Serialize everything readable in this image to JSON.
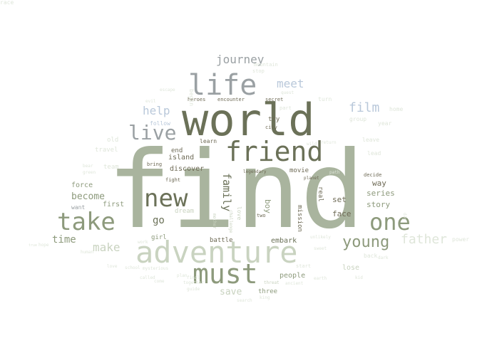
{
  "palette": {
    "dark": "#6b7158",
    "sage": "#a9b49e",
    "mid": "#8d9a7c",
    "light": "#c9d3c0",
    "pale": "#dfe6da",
    "gray": "#9aa0a3",
    "blue": "#b9c8da",
    "brown": "#6e6a55"
  },
  "words": [
    {
      "t": "find",
      "c": "sage"
    },
    {
      "t": "world",
      "c": "dark"
    },
    {
      "t": "adventure",
      "c": "light"
    },
    {
      "t": "friend",
      "c": "dark"
    },
    {
      "t": "must",
      "c": "mid"
    },
    {
      "t": "life",
      "c": "gray"
    },
    {
      "t": "new",
      "c": "dark"
    },
    {
      "t": "take",
      "c": "mid"
    },
    {
      "t": "one",
      "c": "mid"
    },
    {
      "t": "live",
      "c": "gray"
    },
    {
      "t": "young",
      "c": "mid"
    },
    {
      "t": "father",
      "c": "pale"
    },
    {
      "t": "make",
      "c": "light"
    },
    {
      "t": "journey",
      "c": "gray"
    },
    {
      "t": "meet",
      "c": "blue"
    },
    {
      "t": "film",
      "c": "blue"
    },
    {
      "t": "help",
      "c": "blue"
    },
    {
      "t": "time",
      "c": "mid"
    },
    {
      "t": "become",
      "c": "mid"
    },
    {
      "t": "go",
      "c": "dark"
    },
    {
      "t": "family",
      "c": "dark"
    },
    {
      "t": "save",
      "c": "light"
    },
    {
      "t": "set",
      "c": "brown"
    },
    {
      "t": "face",
      "c": "brown"
    },
    {
      "t": "way",
      "c": "brown"
    },
    {
      "t": "series",
      "c": "mid"
    },
    {
      "t": "story",
      "c": "mid"
    },
    {
      "t": "force",
      "c": "mid"
    },
    {
      "t": "first",
      "c": "mid"
    },
    {
      "t": "want",
      "c": "gray"
    },
    {
      "t": "dream",
      "c": "light"
    },
    {
      "t": "girl",
      "c": "mid"
    },
    {
      "t": "battle",
      "c": "brown"
    },
    {
      "t": "embark",
      "c": "dark"
    },
    {
      "t": "people",
      "c": "mid"
    },
    {
      "t": "lose",
      "c": "light"
    },
    {
      "t": "movie",
      "c": "brown"
    },
    {
      "t": "boy",
      "c": "mid"
    },
    {
      "t": "love",
      "c": "light"
    },
    {
      "t": "mission",
      "c": "brown"
    },
    {
      "t": "real",
      "c": "brown"
    },
    {
      "t": "discover",
      "c": "brown"
    },
    {
      "t": "island",
      "c": "brown"
    },
    {
      "t": "end",
      "c": "brown"
    },
    {
      "t": "team",
      "c": "pale"
    },
    {
      "t": "travel",
      "c": "pale"
    },
    {
      "t": "old",
      "c": "pale"
    },
    {
      "t": "follow",
      "c": "blue"
    },
    {
      "t": "learn",
      "c": "brown"
    },
    {
      "t": "try",
      "c": "brown"
    },
    {
      "t": "city",
      "c": "brown"
    },
    {
      "t": "group",
      "c": "pale"
    },
    {
      "t": "year",
      "c": "pale"
    },
    {
      "t": "home",
      "c": "pale"
    },
    {
      "t": "turn",
      "c": "pale"
    },
    {
      "t": "leave",
      "c": "pale"
    },
    {
      "t": "lead",
      "c": "pale"
    },
    {
      "t": "decide",
      "c": "brown"
    },
    {
      "t": "power",
      "c": "pale"
    },
    {
      "t": "back",
      "c": "pale"
    },
    {
      "t": "start",
      "c": "pale"
    },
    {
      "t": "three",
      "c": "mid"
    },
    {
      "t": "ancient",
      "c": "pale"
    },
    {
      "t": "king",
      "c": "pale"
    },
    {
      "t": "search",
      "c": "pale"
    },
    {
      "t": "bring",
      "c": "brown"
    },
    {
      "t": "fight",
      "c": "brown"
    },
    {
      "t": "two",
      "c": "brown"
    },
    {
      "t": "stop",
      "c": "pale"
    },
    {
      "t": "mountain",
      "c": "pale"
    },
    {
      "t": "secret",
      "c": "brown"
    },
    {
      "t": "encounter",
      "c": "brown"
    },
    {
      "t": "heroes",
      "c": "brown"
    },
    {
      "t": "part",
      "c": "pale"
    },
    {
      "t": "planet",
      "c": "brown"
    },
    {
      "t": "legendary",
      "c": "brown"
    },
    {
      "t": "mother",
      "c": "light"
    },
    {
      "t": "challenge",
      "c": "light"
    },
    {
      "t": "day",
      "c": "pale"
    },
    {
      "t": "earth",
      "c": "pale"
    },
    {
      "t": "work",
      "c": "pale"
    },
    {
      "t": "plan",
      "c": "pale"
    },
    {
      "t": "together",
      "c": "pale"
    },
    {
      "t": "threat",
      "c": "light"
    },
    {
      "t": "begin",
      "c": "pale"
    },
    {
      "t": "escape",
      "c": "pale"
    },
    {
      "t": "quest",
      "c": "pale"
    },
    {
      "t": "evil",
      "c": "pale"
    },
    {
      "t": "human",
      "c": "pale"
    },
    {
      "t": "hope",
      "c": "pale"
    },
    {
      "t": "true",
      "c": "pale"
    },
    {
      "t": "school",
      "c": "pale"
    },
    {
      "t": "mysterious",
      "c": "pale"
    },
    {
      "t": "called",
      "c": "pale"
    },
    {
      "t": "come",
      "c": "pale"
    },
    {
      "t": "final",
      "c": "pale"
    },
    {
      "t": "guide",
      "c": "pale"
    },
    {
      "t": "dark",
      "c": "pale"
    },
    {
      "t": "return",
      "c": "pale"
    },
    {
      "t": "wild",
      "c": "pale"
    },
    {
      "t": "green",
      "c": "pale"
    },
    {
      "t": "bear",
      "c": "pale"
    },
    {
      "t": "love",
      "c": "pale"
    },
    {
      "t": "unlikely",
      "c": "pale"
    },
    {
      "t": "sweet",
      "c": "pale"
    },
    {
      "t": "kid",
      "c": "pale"
    },
    {
      "t": "path",
      "c": "pale"
    },
    {
      "t": "race",
      "c": "pale"
    }
  ]
}
